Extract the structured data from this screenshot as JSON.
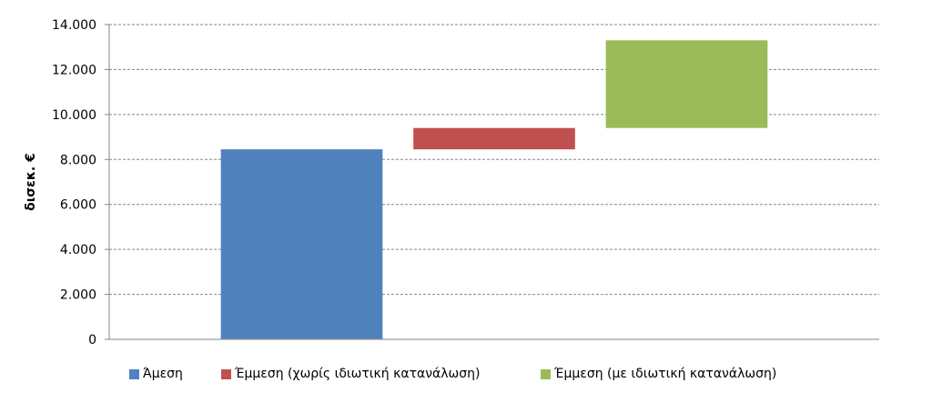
{
  "chart_data": {
    "type": "bar",
    "subtype": "floating-waterfall",
    "ylabel": "δισεκ. €",
    "ylim": [
      0,
      14000
    ],
    "yticks": [
      0,
      2000,
      4000,
      6000,
      8000,
      10000,
      12000,
      14000
    ],
    "ytick_labels": [
      "0",
      "2.000",
      "4.000",
      "6.000",
      "8.000",
      "10.000",
      "12.000",
      "14.000"
    ],
    "grid": "horizontal-dashed",
    "legend_position": "bottom",
    "series": [
      {
        "name": "Άμεση",
        "color": "#4f81bd",
        "base": 0,
        "top": 8450
      },
      {
        "name": "Έμμεση (χωρίς ιδιωτική κατανάλωση)",
        "color": "#c0504d",
        "base": 8450,
        "top": 9400
      },
      {
        "name": "Έμμεση (με ιδιωτική κατανάλωση)",
        "color": "#9bbb59",
        "base": 9400,
        "top": 13300
      }
    ]
  }
}
